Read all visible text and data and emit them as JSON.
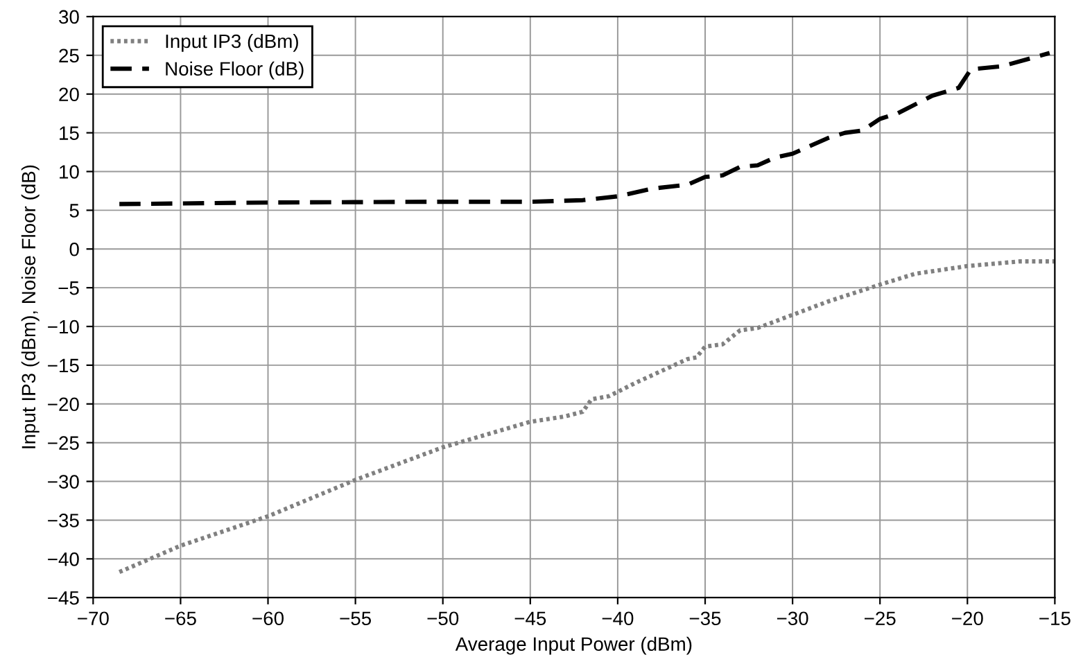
{
  "chart_data": {
    "type": "line",
    "xlabel": "Average Input Power (dBm)",
    "ylabel": "Input IP3 (dBm), Noise Floor (dB)",
    "series": [
      {
        "name": "Input IP3 (dBm)",
        "color": "#808080",
        "line_style": "dotted",
        "x": [
          -68.5,
          -65,
          -60,
          -55,
          -50,
          -45,
          -43,
          -42,
          -41.5,
          -40.5,
          -39,
          -36,
          -35.5,
          -35,
          -34,
          -33,
          -32,
          -30,
          -28,
          -25,
          -23,
          -20,
          -17,
          -15
        ],
        "values": [
          -41.7,
          -38.3,
          -34.5,
          -29.8,
          -25.6,
          -22.3,
          -21.6,
          -21,
          -19.4,
          -19,
          -17.3,
          -14.2,
          -14,
          -12.6,
          -12.3,
          -10.5,
          -10.2,
          -8.5,
          -6.8,
          -4.6,
          -3.2,
          -2.2,
          -1.6,
          -1.6
        ]
      },
      {
        "name": "Noise Floor (dB)",
        "color": "#000000",
        "line_style": "dashed",
        "x": [
          -68.5,
          -60,
          -50,
          -45,
          -42,
          -40,
          -38,
          -36,
          -35,
          -34,
          -33,
          -32,
          -31,
          -30,
          -28,
          -27,
          -26,
          -25,
          -24,
          -22,
          -20.5,
          -19.8,
          -18,
          -15.3
        ],
        "values": [
          5.8,
          6,
          6.1,
          6.1,
          6.3,
          6.8,
          7.8,
          8.3,
          9.3,
          9.5,
          10.6,
          10.8,
          11.8,
          12.3,
          14.3,
          15,
          15.3,
          16.8,
          17.5,
          19.8,
          20.8,
          23.2,
          23.6,
          25.3
        ]
      }
    ],
    "xlim": [
      -70,
      -15
    ],
    "xticks": [
      {
        "value": -70,
        "label": "−70"
      },
      {
        "value": -65,
        "label": "−65"
      },
      {
        "value": -60,
        "label": "−60"
      },
      {
        "value": -55,
        "label": "−55"
      },
      {
        "value": -50,
        "label": "−50"
      },
      {
        "value": -45,
        "label": "−45"
      },
      {
        "value": -40,
        "label": "−40"
      },
      {
        "value": -35,
        "label": "−35"
      },
      {
        "value": -30,
        "label": "−30"
      },
      {
        "value": -25,
        "label": "−25"
      },
      {
        "value": -20,
        "label": "−20"
      },
      {
        "value": -15,
        "label": "−15"
      }
    ],
    "ylim": [
      -45,
      30
    ],
    "yticks": [
      {
        "value": -45,
        "label": "−45"
      },
      {
        "value": -40,
        "label": "−40"
      },
      {
        "value": -35,
        "label": "−35"
      },
      {
        "value": -30,
        "label": "−30"
      },
      {
        "value": -25,
        "label": "−25"
      },
      {
        "value": -20,
        "label": "−20"
      },
      {
        "value": -15,
        "label": "−15"
      },
      {
        "value": -10,
        "label": "−10"
      },
      {
        "value": -5,
        "label": "−5"
      },
      0,
      5,
      10,
      15,
      20,
      25,
      30
    ],
    "grid": true,
    "legend": "top left"
  }
}
